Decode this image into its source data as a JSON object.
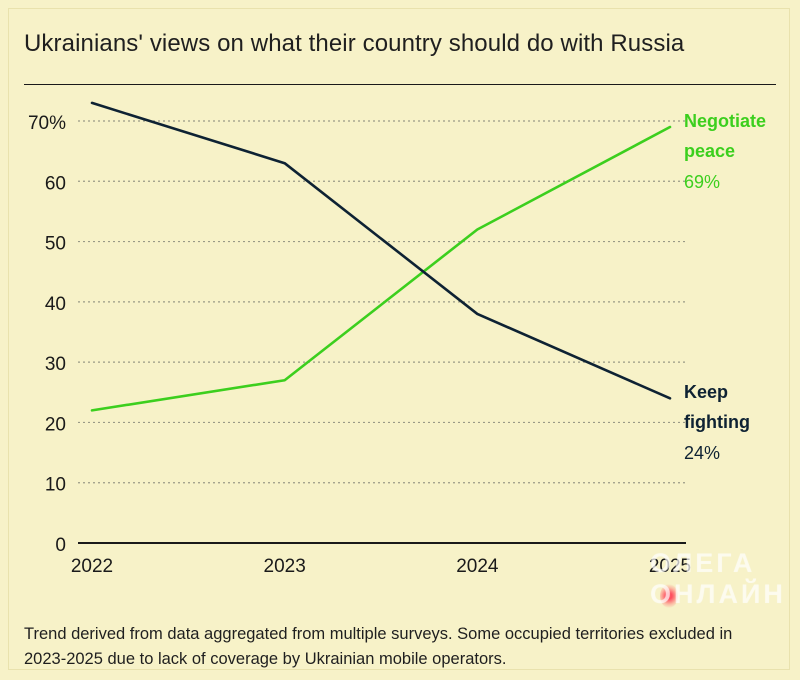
{
  "title": "Ukrainians' views on what their country should do with Russia",
  "footnote": "Trend derived from data aggregated from multiple surveys. Some occupied territories excluded in 2023-2025 due to lack of coverage by Ukrainian mobile operators.",
  "watermark": {
    "line1": "ОЛЕГА",
    "line2": "ОНЛАЙН"
  },
  "colors": {
    "negotiate": "#3ccf1e",
    "fight": "#0e2233",
    "grid": "#9a9a86",
    "axis": "#1a1a1a"
  },
  "chart_data": {
    "type": "line",
    "title": "Ukrainians' views on what their country should do with Russia",
    "x": [
      "2022",
      "2023",
      "2024",
      "2025"
    ],
    "ylim": [
      0,
      75
    ],
    "yticks": [
      0,
      10,
      20,
      30,
      40,
      50,
      60,
      70
    ],
    "ytick_labels": [
      "0",
      "10",
      "20",
      "30",
      "40",
      "50",
      "60",
      "70%"
    ],
    "grid": true,
    "series": [
      {
        "name": "Negotiate peace",
        "label_lines": [
          "Negotiate",
          "peace"
        ],
        "values": [
          22,
          27,
          52,
          69
        ],
        "end_label": "69%"
      },
      {
        "name": "Keep fighting",
        "label_lines": [
          "Keep",
          "fighting"
        ],
        "values": [
          73,
          63,
          38,
          24
        ],
        "end_label": "24%"
      }
    ]
  }
}
